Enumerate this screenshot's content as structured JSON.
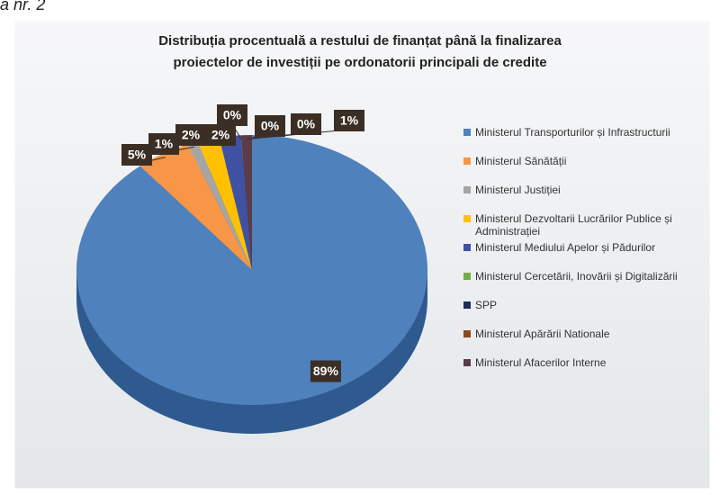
{
  "caption": "a nr. 2",
  "chart_data": {
    "type": "pie",
    "title": [
      "Distribuția procentuală a restului de finanțat până la finalizarea",
      "proiectelor de investiții pe ordonatorii principali de credite"
    ],
    "categories": [
      "Ministerul Transporturilor și Infrastructurii",
      "Ministerul Sănătății",
      "Ministerul Justiției",
      "Ministerul Dezvoltarii Lucrărilor Publice și Administrației",
      "Ministerul Mediului Apelor și Pădurilor",
      "Ministerul Cercetării, Inovării și Digitalizării",
      "SPP",
      "Ministerul Apărării Nationale",
      "Ministerul Afacerilor Interne"
    ],
    "values": [
      89,
      5,
      1,
      2,
      2,
      0,
      0,
      0,
      1
    ],
    "value_labels": [
      "89%",
      "5%",
      "1%",
      "2%",
      "2%",
      "0%",
      "0%",
      "0%",
      "1%"
    ],
    "colors": [
      "#4f81bd",
      "#f79646",
      "#a5a5a5",
      "#ffc000",
      "#3f51a3",
      "#70ad47",
      "#1f2d5a",
      "#8b4a1c",
      "#5a3d48"
    ],
    "legend": "right"
  }
}
